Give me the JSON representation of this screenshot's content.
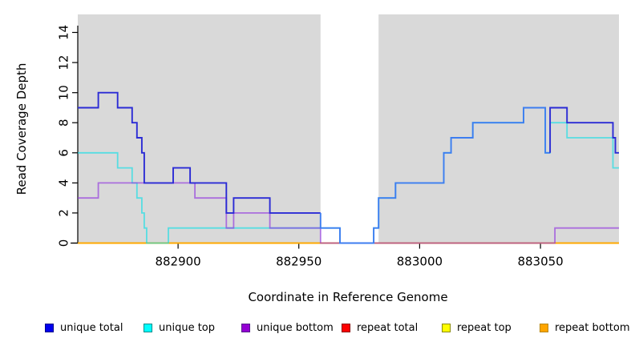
{
  "chart_data": {
    "type": "line",
    "subtype": "step",
    "title": "",
    "xlabel": "Coordinate in Reference Genome",
    "ylabel": "Read Coverage Depth",
    "xlim": [
      882858.5,
      883082.5
    ],
    "ylim": [
      0,
      15.2
    ],
    "xticks": [
      882900,
      882950,
      883000,
      883050
    ],
    "yticks": [
      0,
      2,
      4,
      6,
      8,
      10,
      12,
      14
    ],
    "grid": "off",
    "legend_position": "bottom",
    "plot_bg": "#D9D9D9",
    "masked_region": {
      "from": 882959,
      "to": 882983,
      "color": "#FFFFFF"
    },
    "series": [
      {
        "name": "unique total",
        "color": "#2B2BD5",
        "overlap_color": "#3D7DF0",
        "opacity": 1,
        "steps": [
          [
            882858.5,
            9
          ],
          [
            882867,
            10
          ],
          [
            882875,
            9
          ],
          [
            882881,
            8
          ],
          [
            882883,
            7
          ],
          [
            882885,
            6
          ],
          [
            882886,
            4
          ],
          [
            882898,
            5
          ],
          [
            882905,
            4
          ],
          [
            882920,
            2
          ],
          [
            882923,
            3
          ],
          [
            882938,
            2
          ],
          [
            882959,
            1
          ],
          [
            882967,
            0
          ],
          [
            882981,
            1
          ],
          [
            882983,
            3
          ],
          [
            882990,
            4
          ],
          [
            883010,
            6
          ],
          [
            883013,
            7
          ],
          [
            883022,
            8
          ],
          [
            883043,
            9
          ],
          [
            883052,
            6
          ],
          [
            883054,
            9
          ],
          [
            883061,
            8
          ],
          [
            883080,
            7
          ],
          [
            883081,
            6
          ]
        ]
      },
      {
        "name": "unique top",
        "color": "#00DFE8",
        "opacity": 0.6,
        "steps": [
          [
            882858.5,
            6
          ],
          [
            882875,
            5
          ],
          [
            882881,
            4
          ],
          [
            882883,
            3
          ],
          [
            882885,
            2
          ],
          [
            882886,
            1
          ],
          [
            882887,
            0
          ],
          [
            882896,
            1
          ],
          [
            882967,
            0
          ],
          [
            882981,
            1
          ],
          [
            882983,
            3
          ],
          [
            882990,
            4
          ],
          [
            883010,
            6
          ],
          [
            883013,
            7
          ],
          [
            883022,
            8
          ],
          [
            883043,
            9
          ],
          [
            883052,
            6
          ],
          [
            883054,
            8
          ],
          [
            883061,
            7
          ],
          [
            883080,
            5
          ]
        ]
      },
      {
        "name": "unique bottom",
        "color": "#8F2FE0",
        "opacity": 0.63,
        "steps": [
          [
            882858.5,
            3
          ],
          [
            882867,
            4
          ],
          [
            882907,
            3
          ],
          [
            882920,
            1
          ],
          [
            882923,
            2
          ],
          [
            882938,
            1
          ],
          [
            882959,
            0
          ],
          [
            883056,
            1
          ]
        ]
      },
      {
        "name": "repeat total",
        "color": "#FF0000",
        "opacity": 1,
        "steps": [
          [
            882858.5,
            0
          ]
        ]
      },
      {
        "name": "repeat top",
        "color": "#FFFF00",
        "opacity": 1,
        "steps": [
          [
            882858.5,
            0
          ]
        ]
      },
      {
        "name": "repeat bottom",
        "color": "#FFA500",
        "opacity": 1,
        "steps": [
          [
            882858.5,
            0
          ]
        ]
      }
    ],
    "legend": [
      {
        "label": "unique total",
        "fill": "#0000EE",
        "border": "#00008B"
      },
      {
        "label": "unique top",
        "fill": "#00FFFF",
        "border": "#008B8B"
      },
      {
        "label": "unique bottom",
        "fill": "#9400D3",
        "border": "#551A8B"
      },
      {
        "label": "repeat total",
        "fill": "#FF0000",
        "border": "#8B0000"
      },
      {
        "label": "repeat top",
        "fill": "#FFFF00",
        "border": "#8B8B00"
      },
      {
        "label": "repeat bottom",
        "fill": "#FFA500",
        "border": "#B8860B"
      }
    ]
  }
}
